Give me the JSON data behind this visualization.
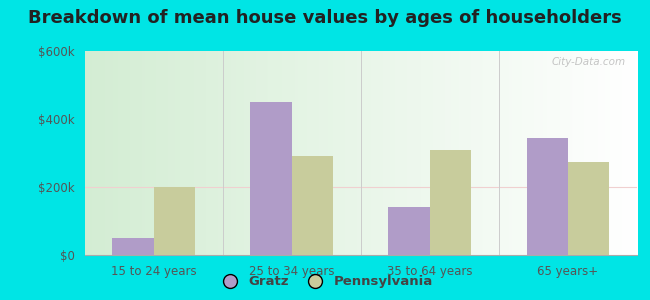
{
  "title": "Breakdown of mean house values by ages of householders",
  "categories": [
    "15 to 24 years",
    "25 to 34 years",
    "35 to 64 years",
    "65 years+"
  ],
  "gratz_values": [
    50000,
    450000,
    140000,
    345000
  ],
  "pennsylvania_values": [
    200000,
    290000,
    310000,
    275000
  ],
  "gratz_color": "#b09cc8",
  "pennsylvania_color": "#c8cc9c",
  "background_color": "#00e5e5",
  "ylim": [
    0,
    600000
  ],
  "yticks": [
    0,
    200000,
    400000,
    600000
  ],
  "ytick_labels": [
    "$0",
    "$200k",
    "$400k",
    "$600k"
  ],
  "legend_gratz": "Gratz",
  "legend_pennsylvania": "Pennsylvania",
  "bar_width": 0.3,
  "title_fontsize": 13,
  "tick_fontsize": 8.5,
  "legend_fontsize": 9.5,
  "watermark": "City-Data.com"
}
